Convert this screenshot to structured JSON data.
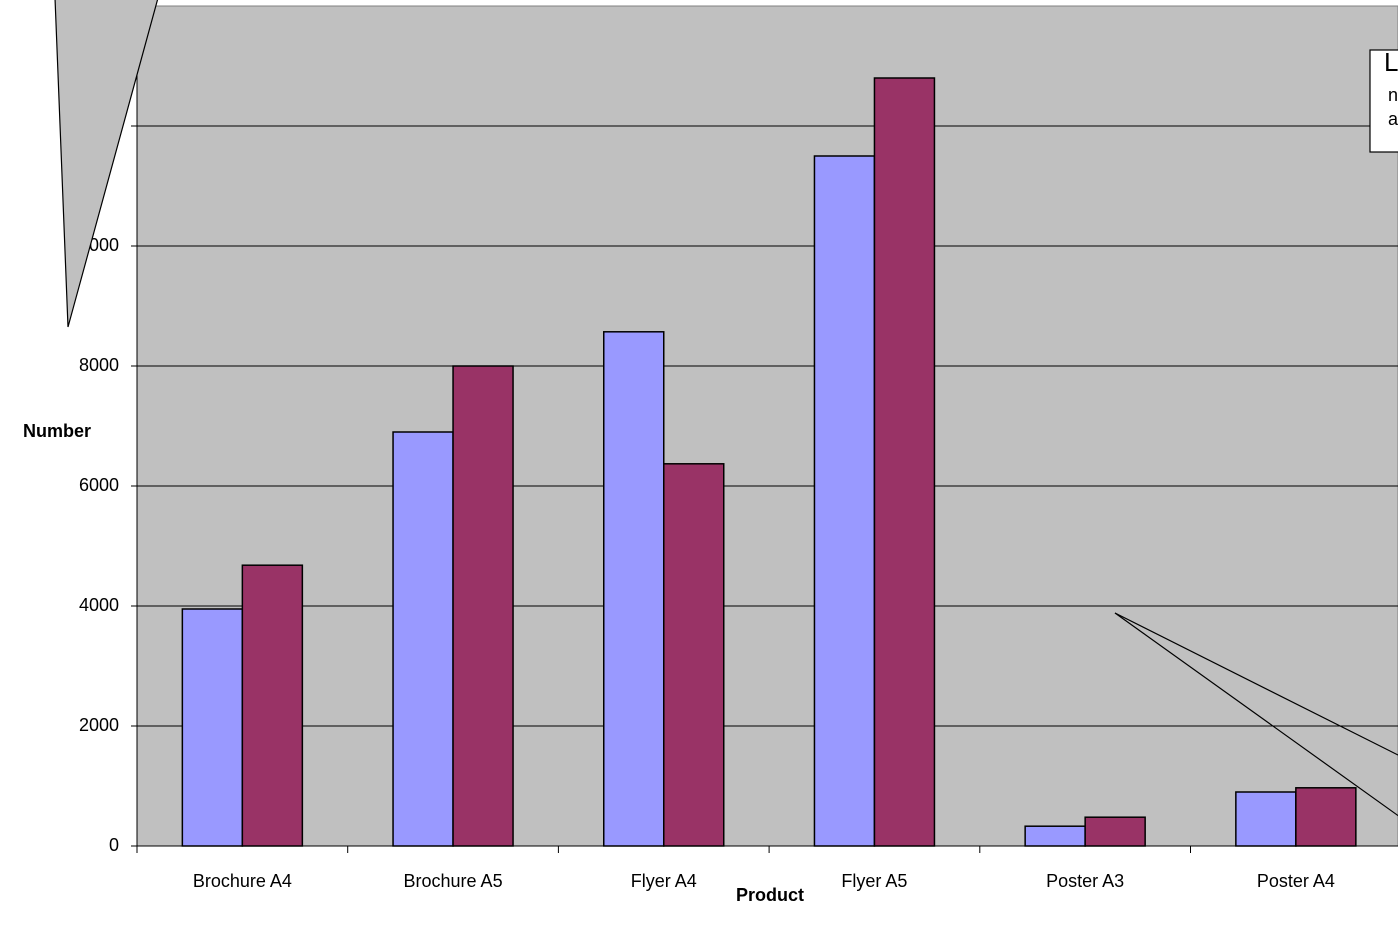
{
  "chart_data": {
    "type": "bar",
    "categories": [
      "Brochure A4",
      "Brochure A5",
      "Flyer A4",
      "Flyer A5",
      "Poster A3",
      "Poster A4"
    ],
    "series": [
      {
        "color": "#9999ff",
        "values": [
          3950,
          6900,
          8570,
          11500,
          330,
          900
        ]
      },
      {
        "color": "#993366",
        "values": [
          4680,
          8000,
          6370,
          12800,
          480,
          970
        ]
      }
    ],
    "x_label": "Product",
    "y_label": "Number",
    "ylim": [
      0,
      14000
    ],
    "yticks": [
      0,
      2000,
      4000,
      6000,
      8000,
      10000,
      12000
    ],
    "grid": true,
    "annotation_lines": [
      "L",
      "n",
      "a"
    ]
  }
}
